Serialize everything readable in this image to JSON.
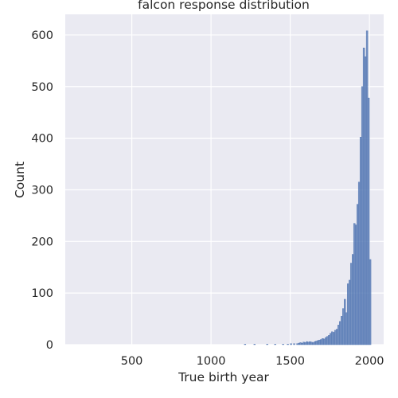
{
  "chart_data": {
    "type": "histogram",
    "title": "falcon response distribution",
    "xlabel": "True birth year",
    "ylabel": "Count",
    "xlim": [
      80,
      2090
    ],
    "ylim": [
      0,
      640
    ],
    "xticks": [
      500,
      1000,
      1500,
      2000
    ],
    "yticks": [
      0,
      100,
      200,
      300,
      400,
      500,
      600
    ],
    "grid": true,
    "bin_width": 10,
    "bar_color": "#4c72b0",
    "plot_background": "#eaeaf2",
    "bins": [
      [
        1215,
        1
      ],
      [
        1275,
        1
      ],
      [
        1355,
        1
      ],
      [
        1405,
        1
      ],
      [
        1455,
        1
      ],
      [
        1485,
        1
      ],
      [
        1505,
        2
      ],
      [
        1525,
        2
      ],
      [
        1545,
        2
      ],
      [
        1555,
        3
      ],
      [
        1565,
        4
      ],
      [
        1575,
        3
      ],
      [
        1585,
        5
      ],
      [
        1595,
        4
      ],
      [
        1605,
        6
      ],
      [
        1615,
        5
      ],
      [
        1625,
        6
      ],
      [
        1635,
        5
      ],
      [
        1645,
        4
      ],
      [
        1655,
        6
      ],
      [
        1665,
        7
      ],
      [
        1675,
        8
      ],
      [
        1685,
        9
      ],
      [
        1695,
        10
      ],
      [
        1705,
        12
      ],
      [
        1715,
        11
      ],
      [
        1725,
        14
      ],
      [
        1735,
        16
      ],
      [
        1745,
        18
      ],
      [
        1755,
        22
      ],
      [
        1765,
        25
      ],
      [
        1775,
        24
      ],
      [
        1785,
        28
      ],
      [
        1795,
        30
      ],
      [
        1805,
        38
      ],
      [
        1815,
        45
      ],
      [
        1825,
        55
      ],
      [
        1835,
        70
      ],
      [
        1845,
        88
      ],
      [
        1855,
        62
      ],
      [
        1865,
        118
      ],
      [
        1875,
        125
      ],
      [
        1885,
        158
      ],
      [
        1895,
        175
      ],
      [
        1905,
        235
      ],
      [
        1915,
        232
      ],
      [
        1925,
        272
      ],
      [
        1935,
        315
      ],
      [
        1945,
        402
      ],
      [
        1955,
        500
      ],
      [
        1965,
        575
      ],
      [
        1975,
        558
      ],
      [
        1985,
        608
      ],
      [
        1995,
        478
      ],
      [
        2005,
        165
      ]
    ]
  }
}
